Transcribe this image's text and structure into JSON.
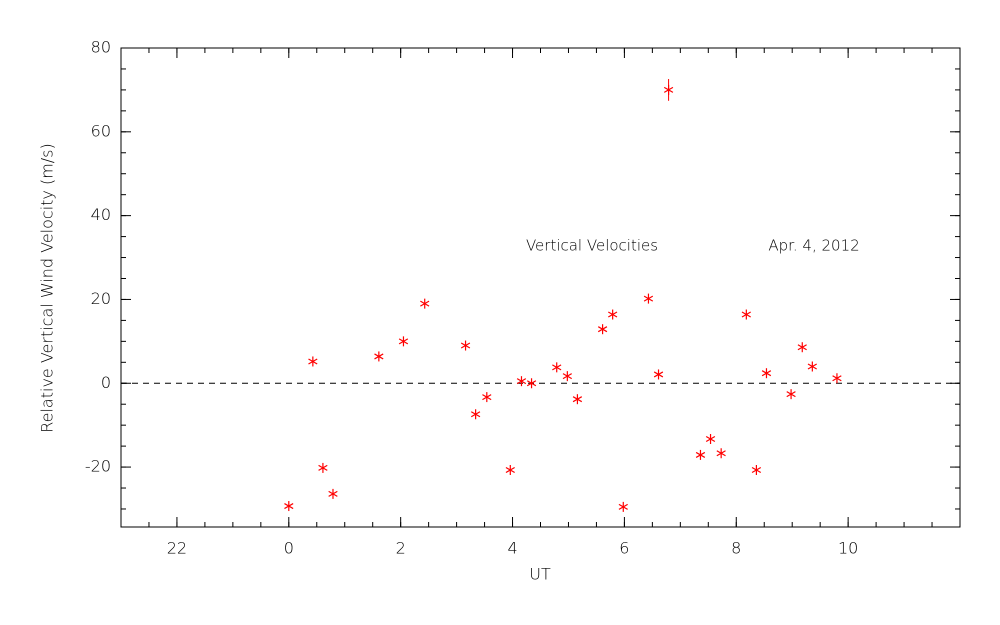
{
  "chart_data": {
    "type": "scatter",
    "annotations": [
      "Vertical Velocities",
      "Apr. 4, 2012"
    ],
    "xlabel": "UT",
    "ylabel": "Relative Vertical Wind Velocity (m/s)",
    "xlim": [
      -3,
      12
    ],
    "ylim": [
      -34.3,
      80
    ],
    "xticks": [
      {
        "value": -2,
        "label": "22"
      },
      0,
      2,
      4,
      6,
      8,
      10
    ],
    "yticks": [
      -20,
      0,
      20,
      40,
      60,
      80
    ],
    "minor_ticks": 4,
    "reference_line": 0,
    "series": [
      {
        "color": "#ff0000",
        "x": [
          0,
          0.43,
          0.61,
          0.79,
          1.61,
          2.05,
          2.43,
          3.16,
          3.34,
          3.54,
          3.96,
          4.16,
          4.34,
          4.79,
          4.98,
          5.16,
          5.61,
          5.79,
          5.98,
          6.43,
          6.61,
          6.79,
          7.36,
          7.54,
          7.73,
          8.18,
          8.36,
          8.54,
          8.98,
          9.18,
          9.36,
          9.8
        ],
        "values": [
          -29.3,
          5.2,
          -20.2,
          -26.4,
          6.4,
          10,
          19,
          9,
          -7.4,
          -3.3,
          -20.7,
          0.5,
          0,
          3.8,
          1.7,
          -3.8,
          12.9,
          16.4,
          -29.5,
          20.2,
          2.1,
          70,
          -17.1,
          -13.3,
          -16.7,
          16.4,
          -20.7,
          2.4,
          -2.6,
          8.6,
          4,
          1.2
        ],
        "errors": [
          null,
          null,
          null,
          null,
          null,
          null,
          null,
          null,
          null,
          null,
          null,
          null,
          null,
          null,
          null,
          null,
          null,
          null,
          null,
          null,
          null,
          2.6,
          null,
          null,
          null,
          null,
          null,
          null,
          null,
          null,
          null,
          null
        ]
      }
    ]
  }
}
